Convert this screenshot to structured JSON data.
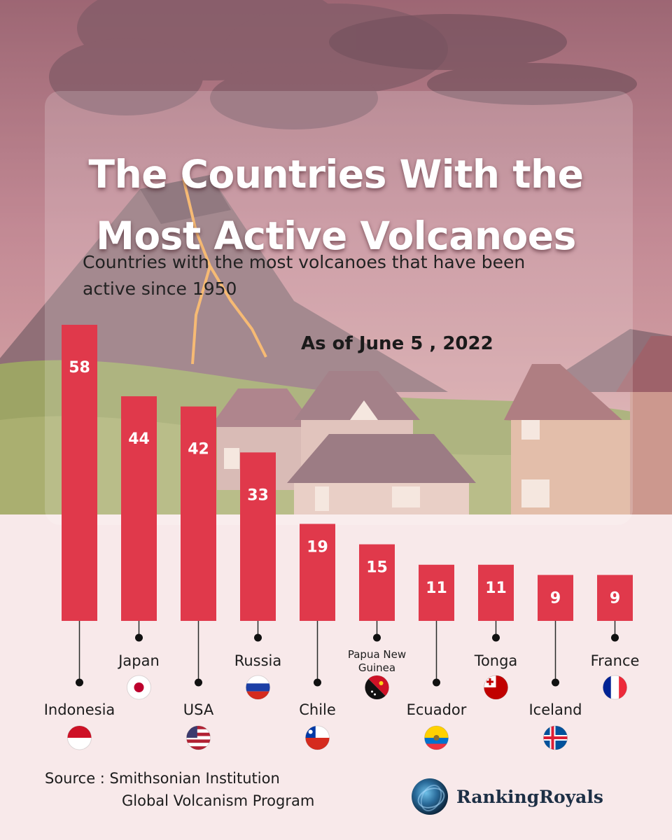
{
  "header": {
    "title_line1": "The Countries With the",
    "title_line2": "Most Active Volcanoes",
    "subtitle_line1": "Countries with the most volcanoes that have been",
    "subtitle_line2": "active since 1950",
    "as_of": "As of June 5 , 2022"
  },
  "chart_data": {
    "type": "bar",
    "categories": [
      "Indonesia",
      "Japan",
      "USA",
      "Russia",
      "Chile",
      "Papua New Guinea",
      "Ecuador",
      "Tonga",
      "Iceland",
      "France"
    ],
    "values": [
      58,
      44,
      42,
      33,
      19,
      15,
      11,
      11,
      9,
      9
    ],
    "value_labels": [
      "58",
      "44",
      "42",
      "33",
      "19",
      "15",
      "11",
      "11",
      "9",
      "9"
    ],
    "ylim": [
      0,
      58
    ],
    "grid": false,
    "legend": "none",
    "bar_color": "#e0394b"
  },
  "category_lines": [
    [
      "Indonesia"
    ],
    [
      "Japan"
    ],
    [
      "USA"
    ],
    [
      "Russia"
    ],
    [
      "Chile"
    ],
    [
      "Papua New",
      "Guinea"
    ],
    [
      "Ecuador"
    ],
    [
      "Tonga"
    ],
    [
      "Iceland"
    ],
    [
      "France"
    ]
  ],
  "flag_icons": [
    "indonesia-flag-icon",
    "japan-flag-icon",
    "usa-flag-icon",
    "russia-flag-icon",
    "chile-flag-icon",
    "papua-new-guinea-flag-icon",
    "ecuador-flag-icon",
    "tonga-flag-icon",
    "iceland-flag-icon",
    "france-flag-icon"
  ],
  "source": {
    "line1": "Source : Smithsonian Institution",
    "line2": "Global Volcanism Program"
  },
  "brand": {
    "name": "RankingRoyals"
  }
}
